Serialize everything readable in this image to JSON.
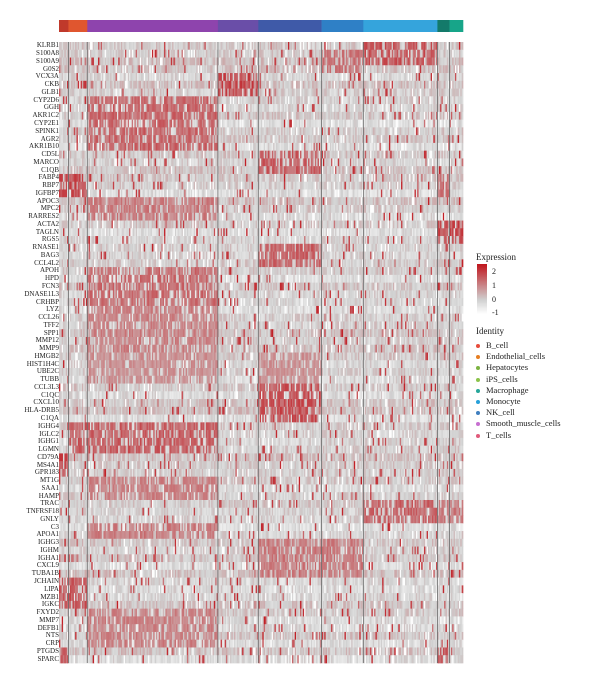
{
  "chart_data": {
    "type": "heatmap",
    "title": "",
    "genes": [
      "KLRB1",
      "S100A8",
      "S100A9",
      "G0S2",
      "VCX3A",
      "CKB",
      "GLB1",
      "CYP2D6",
      "GGH",
      "AKR1C2",
      "CYP2E1",
      "SPINK1",
      "AGR2",
      "AKR1B10",
      "CD5L",
      "MARCO",
      "C1QB",
      "FABP4",
      "RBP7",
      "IGFBP7",
      "APOC3",
      "MPC2",
      "RARRES2",
      "ACTA2",
      "TAGLN",
      "RGS5",
      "RNASE1",
      "BAG3",
      "CCL4L2",
      "APOH",
      "HPD",
      "FCN3",
      "DNASE1L3",
      "CRHBP",
      "LYZ",
      "CCL26",
      "TFF2",
      "SPP1",
      "MMP12",
      "MMP9",
      "HMGB2",
      "HIST1H4C",
      "UBE2C",
      "TUBB",
      "CCL3L3",
      "C1QC",
      "CXCL10",
      "HLA-DRB5",
      "C1QA",
      "IGHG4",
      "IGLC2",
      "IGHG1",
      "LGMN",
      "CD79A",
      "MS4A1",
      "GPR183",
      "MT1G",
      "SAA1",
      "HAMP",
      "TRAC",
      "TNFRSF18",
      "GNLY",
      "C3",
      "APOA1",
      "IGHG3",
      "IGHM",
      "IGHA1",
      "CXCL9",
      "TUBA1B",
      "JCHAIN",
      "LIPA",
      "MZB1",
      "IGKC",
      "FXYD2",
      "MMP7",
      "DEFB1",
      "NTS",
      "CRP",
      "PTGDS",
      "SPARC"
    ],
    "clusters": [
      {
        "identity": "B_cell",
        "color": "#c0392b",
        "width": 0.025
      },
      {
        "identity": "Endothelial_cells",
        "color": "#e0562f",
        "width": 0.045
      },
      {
        "identity": "Hepatocytes",
        "color": "#8e44ad",
        "width": 0.33
      },
      {
        "identity": "iPS_cells",
        "color": "#6a4ea8",
        "width": 0.1
      },
      {
        "identity": "Macrophage",
        "color": "#3f5aa8",
        "width": 0.16
      },
      {
        "identity": "Monocyte",
        "color": "#2f80c6",
        "width": 0.105
      },
      {
        "identity": "NK_cell",
        "color": "#35a4dc",
        "width": 0.185
      },
      {
        "identity": "Smooth_muscle_cells",
        "color": "#137a6a",
        "width": 0.03
      },
      {
        "identity": "T_cells",
        "color": "#17a589",
        "width": 0.035
      }
    ],
    "blocks": [
      {
        "genes": [
          0,
          1,
          2
        ],
        "clusters": [
          6
        ],
        "value": 1.8
      },
      {
        "genes": [
          1,
          2,
          3
        ],
        "clusters": [
          5
        ],
        "value": 1.4
      },
      {
        "genes": [
          4,
          5,
          6
        ],
        "clusters": [
          3
        ],
        "value": 2.0
      },
      {
        "genes": [
          7,
          8,
          9,
          10,
          11,
          12,
          13
        ],
        "clusters": [
          2
        ],
        "value": 1.6
      },
      {
        "genes": [
          14,
          15,
          16
        ],
        "clusters": [
          4
        ],
        "value": 1.7
      },
      {
        "genes": [
          17,
          18,
          19
        ],
        "clusters": [
          0,
          1
        ],
        "value": 2.0
      },
      {
        "genes": [
          17,
          18,
          19
        ],
        "clusters": [
          7
        ],
        "value": 1.5
      },
      {
        "genes": [
          20,
          21,
          22
        ],
        "clusters": [
          2
        ],
        "value": 1.3
      },
      {
        "genes": [
          23,
          24,
          25
        ],
        "clusters": [
          7,
          8
        ],
        "value": 2.0
      },
      {
        "genes": [
          26,
          27,
          28
        ],
        "clusters": [
          4
        ],
        "value": 1.6
      },
      {
        "genes": [
          29,
          30,
          31,
          32,
          33
        ],
        "clusters": [
          2
        ],
        "value": 1.5
      },
      {
        "genes": [
          34,
          35,
          36,
          37,
          38,
          39
        ],
        "clusters": [
          2
        ],
        "value": 1.2
      },
      {
        "genes": [
          40,
          41,
          42,
          43
        ],
        "clusters": [
          2,
          4
        ],
        "value": 1.0
      },
      {
        "genes": [
          44,
          45,
          46,
          47,
          48
        ],
        "clusters": [
          4
        ],
        "value": 1.9
      },
      {
        "genes": [
          49,
          50,
          51,
          52
        ],
        "clusters": [
          1,
          2
        ],
        "value": 1.7
      },
      {
        "genes": [
          53,
          54,
          55
        ],
        "clusters": [
          0
        ],
        "value": 2.0
      },
      {
        "genes": [
          56,
          57,
          58
        ],
        "clusters": [
          2
        ],
        "value": 1.2
      },
      {
        "genes": [
          59,
          60,
          61
        ],
        "clusters": [
          6
        ],
        "value": 1.6
      },
      {
        "genes": [
          59,
          60,
          61
        ],
        "clusters": [
          7,
          8
        ],
        "value": 1.3
      },
      {
        "genes": [
          62,
          63
        ],
        "clusters": [
          2
        ],
        "value": 1.3
      },
      {
        "genes": [
          64,
          65,
          66,
          67,
          68
        ],
        "clusters": [
          4,
          5
        ],
        "value": 1.3
      },
      {
        "genes": [
          69,
          70,
          71,
          72
        ],
        "clusters": [
          0,
          1
        ],
        "value": 1.8
      },
      {
        "genes": [
          73,
          74,
          75,
          76,
          77
        ],
        "clusters": [
          2
        ],
        "value": 1.2
      },
      {
        "genes": [
          78,
          79
        ],
        "clusters": [
          0,
          7
        ],
        "value": 1.7
      }
    ],
    "color_scale": {
      "low": "#ffffff",
      "mid": "#d0d0d0",
      "high": "#c0181f",
      "min": -1,
      "max": 2.5
    }
  },
  "legend": {
    "expression_title": "Expression",
    "ticks": [
      "2",
      "1",
      "0",
      "-1"
    ],
    "identity_title": "Identity",
    "identities": [
      "B_cell",
      "Endothelial_cells",
      "Hepatocytes",
      "iPS_cells",
      "Macrophage",
      "Monocyte",
      "NK_cell",
      "Smooth_muscle_cells",
      "T_cells"
    ],
    "identity_colors": [
      "#e74c3c",
      "#e67e22",
      "#7cb342",
      "#8bc34a",
      "#26a69a",
      "#26a0da",
      "#3f7fbf",
      "#c76fd0",
      "#e05a7a"
    ]
  }
}
